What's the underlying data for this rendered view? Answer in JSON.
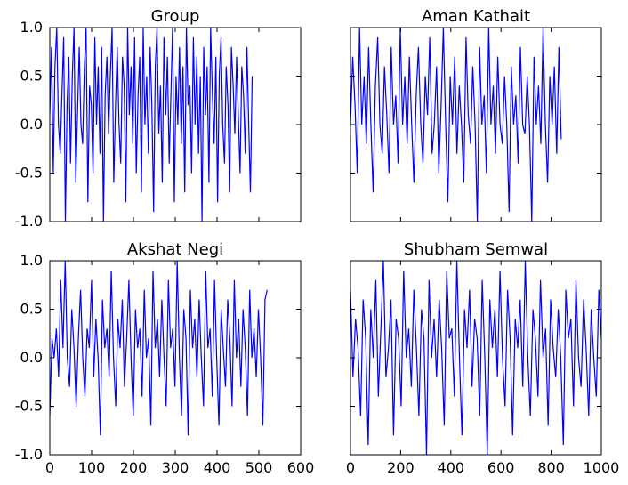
{
  "chart_data": [
    {
      "type": "line",
      "title": "Group",
      "xlim": [
        0,
        600
      ],
      "ylim": [
        -1.0,
        1.0
      ],
      "x_ticks": [],
      "y_ticks": [
        "-1.0",
        "-0.5",
        "0.0",
        "0.5",
        "1.0"
      ],
      "y_tick_values": [
        -1.0,
        -0.5,
        0.0,
        0.5,
        1.0
      ],
      "color": "#0000ff",
      "series": [
        {
          "x_start": 0,
          "x_end": 484,
          "values": [
            0.1,
            0.8,
            -0.5,
            0.6,
            1.0,
            0.0,
            -0.3,
            0.3,
            0.9,
            -1.0,
            0.2,
            0.7,
            -0.4,
            0.5,
            1.0,
            -0.6,
            0.1,
            0.8,
            0.0,
            -0.2,
            0.6,
            1.0,
            -0.8,
            0.4,
            0.2,
            -0.5,
            0.9,
            0.0,
            0.6,
            -0.3,
            0.8,
            -1.0,
            0.3,
            0.7,
            -0.1,
            0.5,
            1.0,
            -0.6,
            0.2,
            0.8,
            0.0,
            -0.4,
            0.7,
            0.4,
            -0.8,
            1.0,
            0.1,
            0.6,
            -0.2,
            0.9,
            -0.5,
            0.3,
            0.7,
            -0.7,
            1.0,
            0.0,
            0.5,
            -0.3,
            0.8,
            0.2,
            -0.9,
            0.6,
            1.0,
            -0.1,
            0.4,
            -0.6,
            0.9,
            0.1,
            0.7,
            -0.4,
            0.3,
            1.0,
            -0.8,
            0.5,
            0.0,
            0.8,
            -0.2,
            0.6,
            -0.7,
            1.0,
            0.2,
            0.4,
            -0.5,
            0.9,
            0.0,
            0.7,
            -0.3,
            0.5,
            -1.0,
            0.8,
            0.1,
            0.6,
            -0.6,
            1.0,
            0.3,
            -0.2,
            0.7,
            -0.8,
            0.5,
            0.9,
            0.0,
            -0.4,
            0.6,
            0.2,
            -0.7,
            0.8,
            0.4,
            -0.1,
            0.7,
            0.1,
            -0.5,
            0.6,
            0.3,
            -0.3,
            0.8,
            0.0,
            -0.7,
            0.5
          ]
        }
      ],
      "position": "top-left"
    },
    {
      "type": "line",
      "title": "Aman Kathait",
      "xlim": [
        0,
        1000
      ],
      "ylim": [
        -1.0,
        1.0
      ],
      "x_ticks": [],
      "y_ticks": [],
      "color": "#0000ff",
      "series": [
        {
          "x_start": 0,
          "x_end": 840,
          "values": [
            0.0,
            0.7,
            0.2,
            -0.5,
            1.0,
            0.0,
            0.5,
            -0.2,
            0.8,
            0.0,
            -0.7,
            0.4,
            0.9,
            0.0,
            -0.3,
            0.6,
            0.1,
            -0.5,
            0.8,
            0.0,
            0.3,
            -0.4,
            1.0,
            0.0,
            0.5,
            -0.2,
            0.7,
            0.0,
            -0.6,
            0.3,
            0.8,
            0.0,
            -0.4,
            0.5,
            0.1,
            0.9,
            -0.3,
            0.0,
            0.6,
            -0.5,
            0.2,
            1.0,
            0.0,
            -0.8,
            0.5,
            0.0,
            0.7,
            -0.3,
            0.4,
            0.0,
            -0.6,
            0.9,
            0.1,
            -0.2,
            0.6,
            0.0,
            -1.0,
            0.8,
            0.0,
            0.3,
            -0.5,
            1.0,
            0.0,
            0.4,
            -0.3,
            0.7,
            0.0,
            -0.2,
            0.5,
            0.0,
            -0.9,
            0.6,
            0.0,
            0.3,
            -0.4,
            0.8,
            0.0,
            -0.1,
            0.5,
            0.0,
            -1.0,
            0.7,
            0.0,
            0.4,
            -0.2,
            1.0,
            0.0,
            -0.6,
            0.5,
            0.0,
            0.6,
            -0.3,
            0.8,
            -0.15
          ]
        }
      ],
      "position": "top-right"
    },
    {
      "type": "line",
      "title": "Akshat Negi",
      "xlim": [
        0,
        600
      ],
      "ylim": [
        -1.0,
        1.0
      ],
      "x_ticks": [
        "0",
        "100",
        "200",
        "300",
        "400",
        "500",
        "600"
      ],
      "x_tick_values": [
        0,
        100,
        200,
        300,
        400,
        500,
        600
      ],
      "y_ticks": [
        "-1.0",
        "-0.5",
        "0.0",
        "0.5",
        "1.0"
      ],
      "y_tick_values": [
        -1.0,
        -0.5,
        0.0,
        0.5,
        1.0
      ],
      "color": "#0000ff",
      "series": [
        {
          "x_start": 0,
          "x_end": 520,
          "values": [
            -0.6,
            0.2,
            0.0,
            0.3,
            -0.2,
            0.8,
            0.1,
            1.0,
            0.0,
            -0.3,
            0.5,
            0.1,
            -0.5,
            0.2,
            0.7,
            0.0,
            -0.4,
            0.3,
            0.1,
            0.8,
            -0.2,
            0.4,
            0.0,
            -0.8,
            0.6,
            0.1,
            0.3,
            -0.2,
            0.9,
            0.0,
            -0.5,
            0.4,
            0.1,
            0.6,
            -0.3,
            0.2,
            0.8,
            0.0,
            -0.6,
            0.5,
            0.1,
            0.3,
            -0.4,
            0.7,
            0.0,
            0.2,
            -0.7,
            0.9,
            0.1,
            0.4,
            -0.2,
            0.6,
            0.0,
            -0.5,
            0.8,
            0.1,
            0.3,
            -0.3,
            1.0,
            0.0,
            -0.6,
            0.5,
            0.2,
            -0.8,
            0.7,
            0.1,
            0.4,
            -0.2,
            0.6,
            0.0,
            -0.5,
            0.9,
            0.1,
            0.3,
            -0.4,
            0.8,
            0.0,
            -0.7,
            0.5,
            0.1,
            -0.3,
            0.6,
            0.2,
            -0.5,
            0.8,
            0.0,
            0.4,
            -0.3,
            0.5,
            0.1,
            -0.6,
            0.7,
            0.0,
            0.3,
            -0.2,
            0.5,
            0.0,
            -0.7,
            0.6,
            0.7
          ]
        }
      ],
      "position": "bottom-left"
    },
    {
      "type": "line",
      "title": "Shubham Semwal",
      "xlim": [
        0,
        1000
      ],
      "ylim": [
        -1.0,
        1.0
      ],
      "x_ticks": [
        "0",
        "200",
        "400",
        "600",
        "800",
        "1000"
      ],
      "x_tick_values": [
        0,
        200,
        400,
        600,
        800,
        1000
      ],
      "y_ticks": [],
      "color": "#0000ff",
      "series": [
        {
          "x_start": 0,
          "x_end": 1000,
          "values": [
            0.7,
            -0.2,
            0.4,
            0.1,
            -0.6,
            0.6,
            0.2,
            -0.9,
            0.5,
            0.0,
            0.8,
            -0.4,
            0.3,
            1.0,
            -0.2,
            0.1,
            0.6,
            -0.8,
            0.4,
            0.2,
            -0.5,
            0.9,
            0.0,
            0.3,
            -0.3,
            0.7,
            0.1,
            -0.6,
            0.5,
            0.2,
            -1.0,
            0.8,
            0.0,
            0.4,
            -0.2,
            0.6,
            0.1,
            -0.7,
            0.9,
            0.2,
            0.3,
            -0.4,
            1.0,
            0.0,
            -0.8,
            0.5,
            0.1,
            0.7,
            -0.3,
            0.4,
            0.2,
            -0.6,
            0.8,
            0.0,
            -1.0,
            0.6,
            0.1,
            0.5,
            -0.2,
            0.9,
            0.0,
            -0.5,
            0.7,
            0.2,
            -0.8,
            0.4,
            0.1,
            0.6,
            -0.3,
            1.0,
            0.0,
            -0.6,
            0.5,
            0.2,
            -0.4,
            0.8,
            0.0,
            0.3,
            -0.7,
            0.6,
            0.1,
            -0.2,
            0.5,
            0.0,
            -0.9,
            0.7,
            0.2,
            0.4,
            -0.5,
            0.8,
            0.0,
            -0.3,
            0.6,
            0.1,
            -0.6,
            0.5,
            0.0,
            -0.4,
            0.7,
            0.2
          ]
        }
      ],
      "position": "bottom-right"
    }
  ]
}
